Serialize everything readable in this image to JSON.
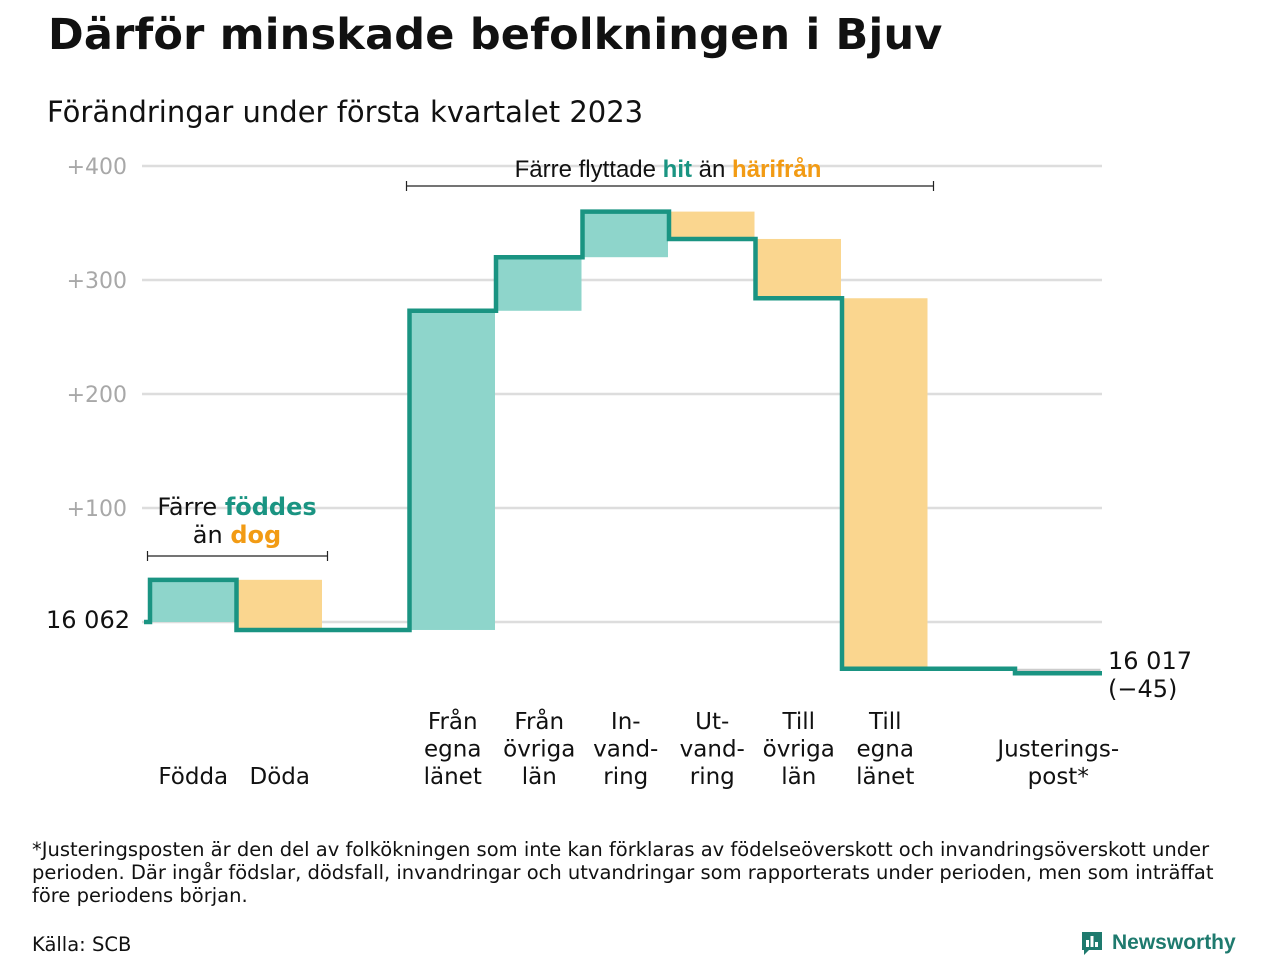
{
  "title": "Därför minskade befolkningen i Bjuv",
  "subtitle": "Förändringar under första kvartalet 2023",
  "colors": {
    "increase_fill": "#8ed5cb",
    "decrease_fill": "#fad68f",
    "step_line": "#1a9482",
    "accent_green": "#1a9482",
    "accent_orange": "#f29b14",
    "gridline": "#dddddd",
    "tick_text": "#a8a8a8",
    "adjustment_fill": "#cccccc"
  },
  "annotations": {
    "birth_death": {
      "line1_a": "Färre ",
      "line1_b": "föddes",
      "line2_a": "än ",
      "line2_b": "dog"
    },
    "migration": {
      "a": "Färre flyttade ",
      "b": "hit",
      "c": " än ",
      "d": "härifrån"
    }
  },
  "footnote": "*Justeringsposten är den del av folkökningen som inte kan förklaras av födelseöverskott och invandringsöverskott under perioden. Där ingår födslar, dödsfall, invandringar och utvandringar som rapporterats under perioden, men som inträffat före periodens början.",
  "source": "Källa: SCB",
  "brand": "Newsworthy",
  "brand_icon": "bar-chart-badge-icon",
  "chart_data": {
    "type": "waterfall",
    "start_value": 16062,
    "start_label": "16 062",
    "end_value": 16017,
    "end_label": "16 017",
    "end_change_label": "(−45)",
    "ylim": [
      -45,
      400
    ],
    "yticks": [
      {
        "value": 100,
        "label": "+100"
      },
      {
        "value": 200,
        "label": "+200"
      },
      {
        "value": 300,
        "label": "+300"
      },
      {
        "value": 400,
        "label": "+400"
      }
    ],
    "grid": true,
    "steps": [
      {
        "slot": 0,
        "label": [
          "Födda"
        ],
        "change": 37,
        "kind": "increase"
      },
      {
        "slot": 1,
        "label": [
          "Döda"
        ],
        "change": -44,
        "kind": "decrease"
      },
      {
        "slot": 3,
        "label": [
          "Från",
          "egna",
          "länet"
        ],
        "change": 280,
        "kind": "increase"
      },
      {
        "slot": 4,
        "label": [
          "Från",
          "övriga",
          "län"
        ],
        "change": 47,
        "kind": "increase"
      },
      {
        "slot": 5,
        "label": [
          "In-",
          "vand-",
          "ring"
        ],
        "change": 40,
        "kind": "increase"
      },
      {
        "slot": 6,
        "label": [
          "Ut-",
          "vand-",
          "ring"
        ],
        "change": -24,
        "kind": "decrease"
      },
      {
        "slot": 7,
        "label": [
          "Till",
          "övriga",
          "län"
        ],
        "change": -52,
        "kind": "decrease"
      },
      {
        "slot": 8,
        "label": [
          "Till",
          "egna",
          "länet"
        ],
        "change": -325,
        "kind": "decrease"
      },
      {
        "slot": 10,
        "label": [
          "Justerings-",
          "post*"
        ],
        "change": -4,
        "kind": "adjustment"
      }
    ]
  }
}
